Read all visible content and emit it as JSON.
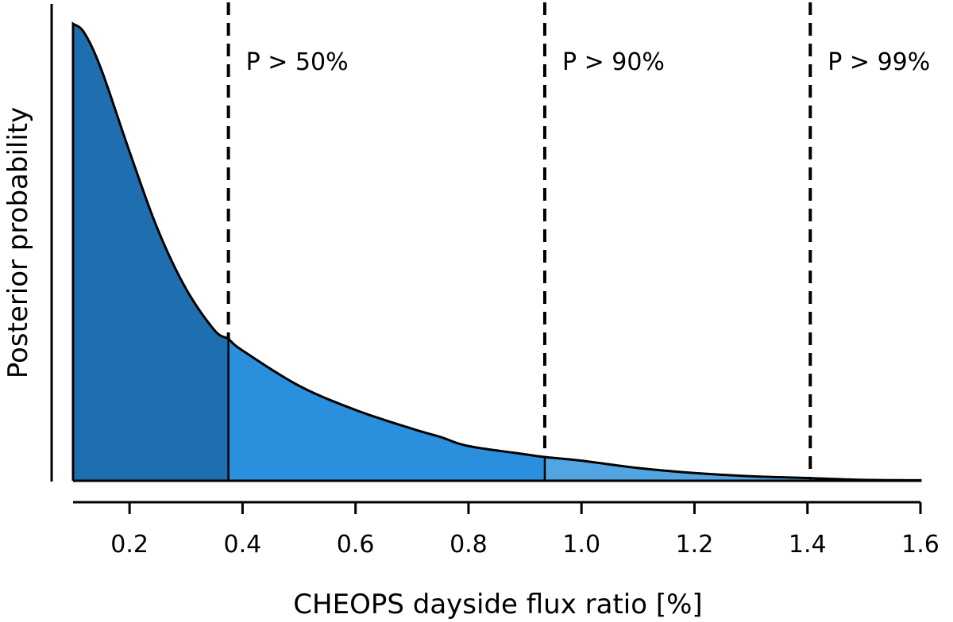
{
  "chart_data": {
    "type": "area",
    "xlabel": "CHEOPS dayside flux ratio [%]",
    "ylabel": "Posterior probability",
    "xlim": [
      0.1,
      1.6
    ],
    "ylim": [
      0,
      1.08
    ],
    "x_ticks": [
      "0.2",
      "0.4",
      "0.6",
      "0.8",
      "1.0",
      "1.2",
      "1.4",
      "1.6"
    ],
    "y_ticks_shown": false,
    "grid": false,
    "curve": {
      "x": [
        0.1,
        0.12,
        0.15,
        0.2,
        0.25,
        0.3,
        0.35,
        0.375,
        0.4,
        0.5,
        0.6,
        0.7,
        0.75,
        0.8,
        0.9,
        0.935,
        1.0,
        1.1,
        1.2,
        1.3,
        1.4,
        1.5,
        1.6
      ],
      "y": [
        1.0,
        0.98,
        0.9,
        0.72,
        0.55,
        0.42,
        0.33,
        0.31,
        0.285,
        0.208,
        0.155,
        0.114,
        0.096,
        0.076,
        0.058,
        0.052,
        0.044,
        0.028,
        0.017,
        0.01,
        0.006,
        0.002,
        0.001
      ]
    },
    "regions": [
      {
        "from": 0.1,
        "to": 0.375,
        "color": "#1f6fb0"
      },
      {
        "from": 0.375,
        "to": 0.935,
        "color": "#2a8fdc"
      },
      {
        "from": 0.935,
        "to": 1.405,
        "color": "#52a5e0"
      },
      {
        "from": 1.405,
        "to": 1.6,
        "color": "#cfe6f6"
      }
    ],
    "thresholds": [
      {
        "x": 0.375,
        "label": "P > 50%"
      },
      {
        "x": 0.935,
        "label": "P > 90%"
      },
      {
        "x": 1.405,
        "label": "P > 99%"
      }
    ]
  }
}
